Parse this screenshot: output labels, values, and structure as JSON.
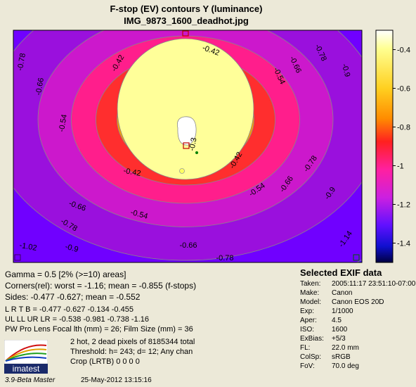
{
  "title_line1": "F-stop (EV) contours   Y (luminance)",
  "title_line2": "IMG_9873_1600_deadhot.jpg",
  "chart_data": {
    "type": "heatmap",
    "colorbar_ticks": [
      -0.4,
      -0.6,
      -0.8,
      -1,
      -1.2,
      -1.4
    ],
    "colorbar_tick_labels": [
      "-0.4",
      "-0.6",
      "-0.8",
      "-1",
      "-1.2",
      "-1.4"
    ],
    "colorbar_range": [
      -1.5,
      -0.3
    ],
    "contour_levels": [
      -0.3,
      -0.42,
      -0.54,
      -0.66,
      -0.78,
      -0.9,
      -1.02,
      -1.14
    ],
    "contour_colors": [
      "#ffffff",
      "#ffff99",
      "#ffd020",
      "#ffa000",
      "#ff2e2e",
      "#ff1e8c",
      "#cc18cc",
      "#9a10dd",
      "#7000ff"
    ],
    "contour_labels": [
      {
        "text": "-0.42"
      },
      {
        "text": "-0.42"
      },
      {
        "text": "-0.42"
      },
      {
        "text": "-0.42"
      },
      {
        "text": "-0.54"
      },
      {
        "text": "-0.54"
      },
      {
        "text": "-0.54"
      },
      {
        "text": "-0.54"
      },
      {
        "text": "-0.66"
      },
      {
        "text": "-0.66"
      },
      {
        "text": "-0.66"
      },
      {
        "text": "-0.66"
      },
      {
        "text": "-0.66"
      },
      {
        "text": "-0.78"
      },
      {
        "text": "-0.78"
      },
      {
        "text": "-0.78"
      },
      {
        "text": "-0.78"
      },
      {
        "text": "-0.78"
      },
      {
        "text": "-0.9"
      },
      {
        "text": "-0.9"
      },
      {
        "text": "-0.9"
      },
      {
        "text": "-1.02"
      },
      {
        "text": "-1.14"
      },
      {
        "text": "-0.3"
      }
    ]
  },
  "stats": {
    "gamma": "Gamma = 0.5  [2% (>=10) areas]",
    "corners": "Corners(rel): worst = -1.16;  mean = -0.855 (f-stops)",
    "sides": "Sides: -0.477  -0.627;  mean = -0.552",
    "lrtb": "L R T B =      -0.477   -0.627   -0.134   -0.455",
    "ulll": "UL LL UR LR = -0.538   -0.981   -0.738    -1.16",
    "pwpro": "PW Pro Lens Focal lth (mm) = 26;  Film Size (mm) = 36",
    "hot": "2 hot, 2 dead pixels of  8185344  total",
    "threshold": "Threshold: h= 243; d= 12; Any chan",
    "crop": "Crop (LRTB)  0  0  0  0"
  },
  "exif": {
    "title": "Selected EXIF data",
    "rows": [
      {
        "k": "Taken:",
        "v": "2005:11:17 23:51:10-07:00"
      },
      {
        "k": "Make:",
        "v": "Canon"
      },
      {
        "k": "Model:",
        "v": "Canon EOS 20D"
      },
      {
        "k": "Exp:",
        "v": "1/1000"
      },
      {
        "k": "Aper:",
        "v": "4.5"
      },
      {
        "k": "ISO:",
        "v": "1600"
      },
      {
        "k": "ExBias:",
        "v": "+5/3"
      },
      {
        "k": "FL:",
        "v": "22.0 mm"
      },
      {
        "k": "ColSp:",
        "v": "sRGB"
      },
      {
        "k": "FoV:",
        "v": "70.0 deg"
      }
    ]
  },
  "logo_text": "imatest",
  "footer_version": "3.9-Beta  Master",
  "footer_date": "25-May-2012 13:15:16"
}
